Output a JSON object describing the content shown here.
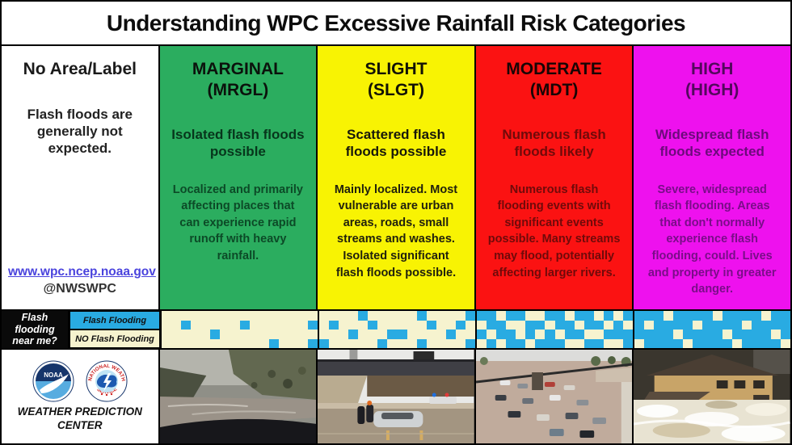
{
  "title": "Understanding WPC Excessive Rainfall Risk Categories",
  "columns": [
    {
      "key": "no-area",
      "name": "No Area/Label",
      "abbr": "",
      "sub": "Flash floods are generally not expected.",
      "body": "",
      "link": "www.wpc.ncep.noaa.gov",
      "handle": "@NWSWPC",
      "colors": {
        "bg": "#FFFFFF",
        "header": "#1a1a1a",
        "sub": "#222222",
        "body": "#222222"
      }
    },
    {
      "key": "marginal",
      "name": "MARGINAL",
      "abbr": "(MRGL)",
      "sub": "Isolated flash floods possible",
      "body": "Localized and primarily affecting places that can experience rapid runoff with heavy rainfall.",
      "colors": {
        "bg": "#2BAD5F",
        "header": "#0b120c",
        "sub": "#07361c",
        "body": "#0c4a27"
      }
    },
    {
      "key": "slight",
      "name": "SLIGHT",
      "abbr": "(SLGT)",
      "sub": "Scattered flash floods possible",
      "body": "Mainly localized. Most vulnerable are urban areas, roads, small streams and washes. Isolated significant flash floods possible.",
      "colors": {
        "bg": "#F8F303",
        "header": "#121206",
        "sub": "#18180a",
        "body": "#21210d"
      }
    },
    {
      "key": "moderate",
      "name": "MODERATE",
      "abbr": "(MDT)",
      "sub": "Numerous flash floods likely",
      "body": "Numerous flash flooding events with significant events possible. Many streams may flood, potentially affecting larger rivers.",
      "colors": {
        "bg": "#FB1212",
        "header": "#180505",
        "sub": "#700a0a",
        "body": "#700a0a"
      }
    },
    {
      "key": "high",
      "name": "HIGH",
      "abbr": "(HIGH)",
      "sub": "Widespread flash floods expected",
      "body": "Severe, widespread flash flooding. Areas that don't normally experience flash flooding, could. Lives and property in greater danger.",
      "colors": {
        "bg": "#EE11EE",
        "header": "#53085d",
        "sub": "#6d0a7c",
        "body": "#7a0d89"
      }
    }
  ],
  "flood_map_strip": {
    "question": "Flash\nflooding\nnear me?",
    "legend_flooding": "Flash Flooding",
    "legend_no_flooding": "NO Flash Flooding",
    "flooding_color": "#29ABE2",
    "no_flooding_color": "#F6F3CF",
    "grids": [
      [
        "0000000000000000",
        "0010000010000001",
        "0000010000000000",
        "0000000000010001"
      ],
      [
        "0000100000100001",
        "0100010000010010",
        "0001000110000100",
        "1000001000100001"
      ],
      [
        "1101100110110101",
        "0110011011011010",
        "1011010101100111",
        "0101101110011001"
      ],
      [
        "1110111101111011",
        "1011110111101111",
        "1111011110111101",
        "0111101111011110"
      ]
    ]
  },
  "footer": {
    "org_name": "WEATHER PREDICTION\nCENTER",
    "noaa_text": "NOAA",
    "nws_ring_top": "NATIONAL WEATHER",
    "nws_ring_bottom": "SERVICE"
  },
  "photos": [
    {
      "key": "marginal",
      "desc": "muddy stream rushing past hillside, seen from vehicle"
    },
    {
      "key": "slight",
      "desc": "car stranded in flooded underpass with responders"
    },
    {
      "key": "moderate",
      "desc": "flooded highway with many submerged cars"
    },
    {
      "key": "high",
      "desc": "house surrounded by raging white floodwater"
    }
  ]
}
